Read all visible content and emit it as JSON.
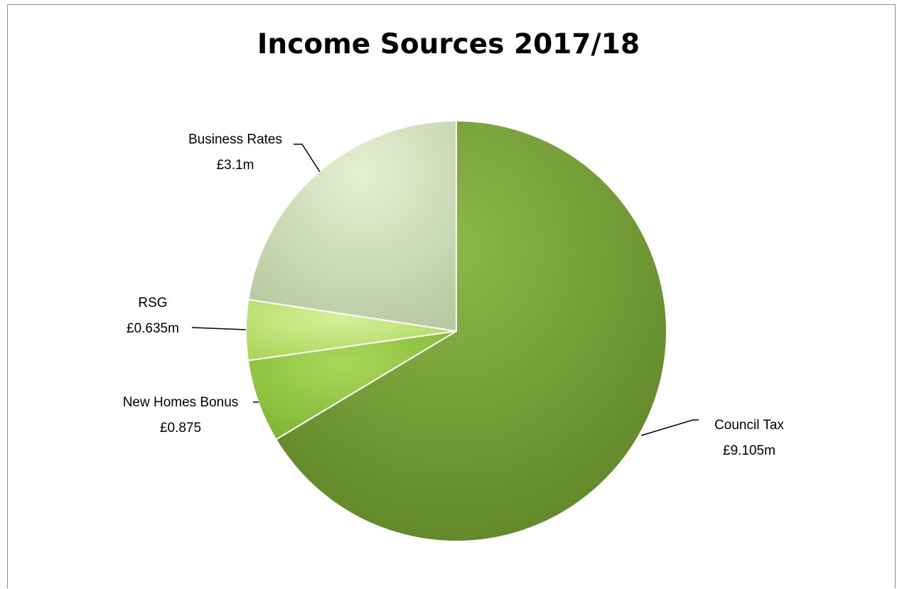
{
  "chart_data": {
    "type": "pie",
    "title": "Income Sources 2017/18",
    "slices": [
      {
        "name": "Council Tax",
        "value_label": "£9.105m",
        "value": 9.105,
        "color": "#6e9a2e"
      },
      {
        "name": "New Homes Bonus",
        "value_label": "£0.875",
        "value": 0.875,
        "color": "#8fc43a"
      },
      {
        "name": "RSG",
        "value_label": "£0.635m",
        "value": 0.635,
        "color": "#b9e06a"
      },
      {
        "name": "Business Rates",
        "value_label": "£3.1m",
        "value": 3.1,
        "color": "#c6d6a8"
      }
    ],
    "legend": "none",
    "data_labels": "outside-with-leader-lines"
  }
}
